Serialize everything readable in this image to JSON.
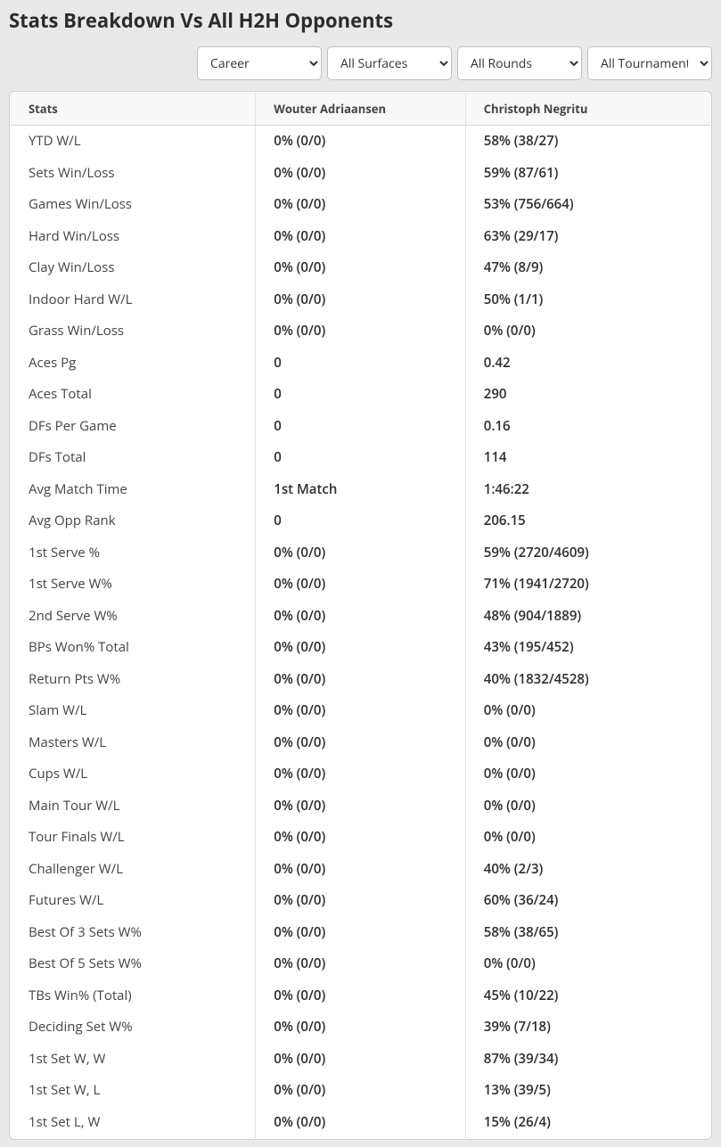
{
  "title": "Stats Breakdown Vs All H2H Opponents",
  "filters": {
    "career": "Career",
    "surface": "All Surfaces",
    "round": "All Rounds",
    "tournament": "All Tournaments"
  },
  "columns": {
    "stat": "Stats",
    "p1": "Wouter Adriaansen",
    "p2": "Christoph Negritu"
  },
  "rows": [
    {
      "stat": "YTD W/L",
      "p1": "0% (0/0)",
      "p2": "58% (38/27)"
    },
    {
      "stat": "Sets Win/Loss",
      "p1": "0% (0/0)",
      "p2": "59% (87/61)"
    },
    {
      "stat": "Games Win/Loss",
      "p1": "0% (0/0)",
      "p2": "53% (756/664)"
    },
    {
      "stat": "Hard Win/Loss",
      "p1": "0% (0/0)",
      "p2": "63% (29/17)"
    },
    {
      "stat": "Clay Win/Loss",
      "p1": "0% (0/0)",
      "p2": "47% (8/9)"
    },
    {
      "stat": "Indoor Hard W/L",
      "p1": "0% (0/0)",
      "p2": "50% (1/1)"
    },
    {
      "stat": "Grass Win/Loss",
      "p1": "0% (0/0)",
      "p2": "0% (0/0)"
    },
    {
      "stat": "Aces Pg",
      "p1": "0",
      "p2": "0.42"
    },
    {
      "stat": "Aces Total",
      "p1": "0",
      "p2": "290"
    },
    {
      "stat": "DFs Per Game",
      "p1": "0",
      "p2": "0.16"
    },
    {
      "stat": "DFs Total",
      "p1": "0",
      "p2": "114"
    },
    {
      "stat": "Avg Match Time",
      "p1": "1st Match",
      "p2": "1:46:22"
    },
    {
      "stat": "Avg Opp Rank",
      "p1": "0",
      "p2": "206.15"
    },
    {
      "stat": "1st Serve %",
      "p1": "0% (0/0)",
      "p2": "59% (2720/4609)"
    },
    {
      "stat": "1st Serve W%",
      "p1": "0% (0/0)",
      "p2": "71% (1941/2720)"
    },
    {
      "stat": "2nd Serve W%",
      "p1": "0% (0/0)",
      "p2": "48% (904/1889)"
    },
    {
      "stat": "BPs Won% Total",
      "p1": "0% (0/0)",
      "p2": "43% (195/452)"
    },
    {
      "stat": "Return Pts W%",
      "p1": "0% (0/0)",
      "p2": "40% (1832/4528)"
    },
    {
      "stat": "Slam W/L",
      "p1": "0% (0/0)",
      "p2": "0% (0/0)"
    },
    {
      "stat": "Masters W/L",
      "p1": "0% (0/0)",
      "p2": "0% (0/0)"
    },
    {
      "stat": "Cups W/L",
      "p1": "0% (0/0)",
      "p2": "0% (0/0)"
    },
    {
      "stat": "Main Tour W/L",
      "p1": "0% (0/0)",
      "p2": "0% (0/0)"
    },
    {
      "stat": "Tour Finals W/L",
      "p1": "0% (0/0)",
      "p2": "0% (0/0)"
    },
    {
      "stat": "Challenger W/L",
      "p1": "0% (0/0)",
      "p2": "40% (2/3)"
    },
    {
      "stat": "Futures W/L",
      "p1": "0% (0/0)",
      "p2": "60% (36/24)"
    },
    {
      "stat": "Best Of 3 Sets W%",
      "p1": "0% (0/0)",
      "p2": "58% (38/65)"
    },
    {
      "stat": "Best Of 5 Sets W%",
      "p1": "0% (0/0)",
      "p2": "0% (0/0)"
    },
    {
      "stat": "TBs Win% (Total)",
      "p1": "0% (0/0)",
      "p2": "45% (10/22)"
    },
    {
      "stat": "Deciding Set W%",
      "p1": "0% (0/0)",
      "p2": "39% (7/18)"
    },
    {
      "stat": "1st Set W, W",
      "p1": "0% (0/0)",
      "p2": "87% (39/34)"
    },
    {
      "stat": "1st Set W, L",
      "p1": "0% (0/0)",
      "p2": "13% (39/5)"
    },
    {
      "stat": "1st Set L, W",
      "p1": "0% (0/0)",
      "p2": "15% (26/4)"
    }
  ]
}
